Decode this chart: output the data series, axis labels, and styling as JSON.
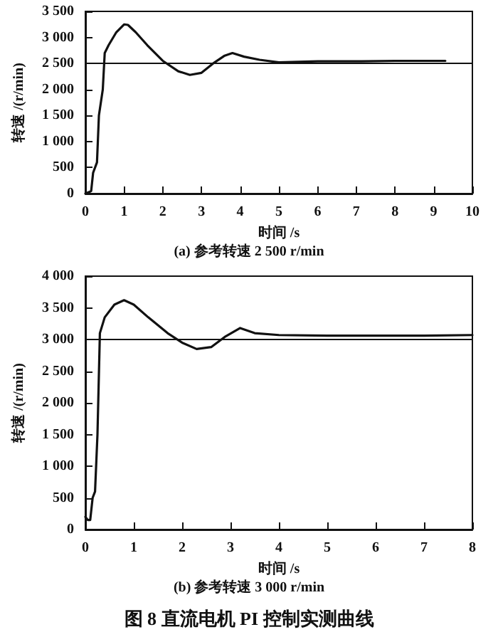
{
  "chart_data": [
    {
      "type": "line",
      "xlabel": "时间 /s",
      "ylabel": "转速 /(r/min)",
      "annotations": [
        "(a) 参考转速 2 500 r/min"
      ],
      "color": "#111111",
      "line_style": "solid",
      "grid": false,
      "x": [
        0,
        0.1,
        0.15,
        0.2,
        0.3,
        0.35,
        0.45,
        0.5,
        0.6,
        0.8,
        1.0,
        1.1,
        1.3,
        1.6,
        2.0,
        2.4,
        2.7,
        3.0,
        3.3,
        3.6,
        3.8,
        4.1,
        4.5,
        5.0,
        5.5,
        6,
        7,
        8,
        9,
        9.3
      ],
      "values": [
        0,
        30,
        50,
        400,
        600,
        1500,
        2000,
        2700,
        2850,
        3100,
        3250,
        3240,
        3100,
        2850,
        2550,
        2350,
        2280,
        2320,
        2500,
        2650,
        2700,
        2630,
        2570,
        2520,
        2530,
        2540,
        2540,
        2550,
        2550,
        2550
      ],
      "xlim": [
        0,
        10
      ],
      "xticks": [
        {
          "value": 0,
          "label": "0"
        },
        1,
        2,
        3,
        4,
        5,
        6,
        7,
        8,
        9,
        10
      ],
      "ylim": [
        0,
        3500
      ],
      "yticks": [
        {
          "value": 0,
          "label": "0"
        },
        500,
        {
          "value": 1000,
          "label": "1 000"
        },
        {
          "value": 1500,
          "label": "1 500"
        },
        {
          "value": 2000,
          "label": "2 000"
        },
        {
          "value": 2500,
          "label": "2 500"
        },
        {
          "value": 3000,
          "label": "3 000"
        },
        {
          "value": 3500,
          "label": "3 500"
        }
      ],
      "ref_lines": [
        {
          "axis": "y",
          "value": 2500,
          "color": "#111111"
        }
      ]
    },
    {
      "type": "line",
      "xlabel": "时间 /s",
      "ylabel": "转速 /(r/min)",
      "annotations": [
        "(b) 参考转速 3 000 r/min",
        "图 8 直流电机 PI 控制实测曲线"
      ],
      "color": "#111111",
      "line_style": "solid",
      "grid": false,
      "x": [
        0,
        0.05,
        0.1,
        0.15,
        0.2,
        0.25,
        0.3,
        0.4,
        0.6,
        0.8,
        1.0,
        1.3,
        1.7,
        2.0,
        2.3,
        2.6,
        2.9,
        3.2,
        3.5,
        4,
        5,
        6,
        7,
        8
      ],
      "values": [
        200,
        150,
        150,
        500,
        600,
        1500,
        3100,
        3350,
        3550,
        3620,
        3550,
        3350,
        3100,
        2950,
        2850,
        2880,
        3050,
        3180,
        3100,
        3070,
        3060,
        3060,
        3060,
        3070
      ],
      "xlim": [
        0,
        8
      ],
      "xticks": [
        {
          "value": 0,
          "label": "0"
        },
        1,
        2,
        3,
        4,
        5,
        6,
        7,
        8
      ],
      "ylim": [
        0,
        4000
      ],
      "yticks": [
        {
          "value": 0,
          "label": "0"
        },
        500,
        {
          "value": 1000,
          "label": "1 000"
        },
        {
          "value": 1500,
          "label": "1 500"
        },
        {
          "value": 2000,
          "label": "2 000"
        },
        {
          "value": 2500,
          "label": "2 500"
        },
        {
          "value": 3000,
          "label": "3 000"
        },
        {
          "value": 3500,
          "label": "3 500"
        },
        {
          "value": 4000,
          "label": "4 000"
        }
      ],
      "ref_lines": [
        {
          "axis": "y",
          "value": 3000,
          "color": "#111111"
        }
      ]
    }
  ]
}
